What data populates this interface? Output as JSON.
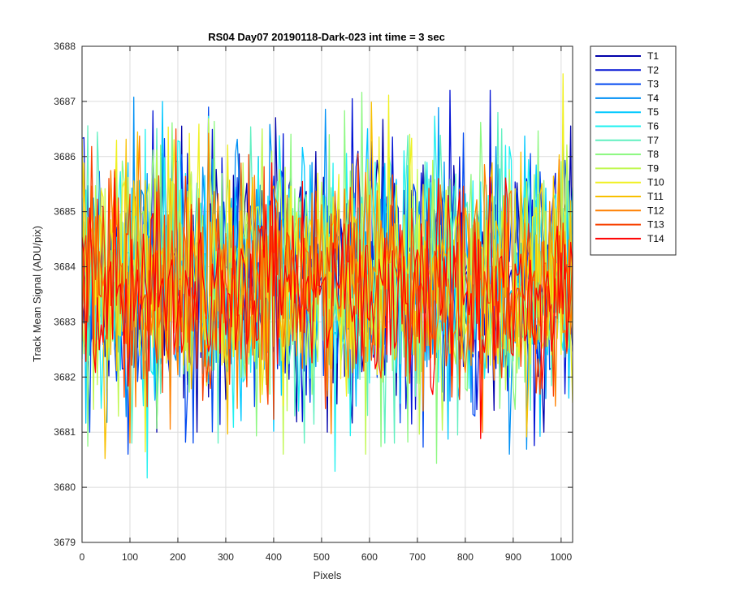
{
  "chart_data": {
    "type": "line",
    "title": "RS04 Day07 20190118-Dark-023 int time = 3 sec",
    "xlabel": "Pixels",
    "ylabel": "Track Mean Signal (ADU/pix)",
    "xlim": [
      0,
      1024
    ],
    "ylim": [
      3679,
      3688
    ],
    "xticks": [
      0,
      100,
      200,
      300,
      400,
      500,
      600,
      700,
      800,
      900,
      1000
    ],
    "yticks": [
      3679,
      3680,
      3681,
      3682,
      3683,
      3684,
      3685,
      3686,
      3687,
      3688
    ],
    "grid": true,
    "legend_position": "outside-top-right",
    "x_step": 4,
    "series": [
      {
        "name": "T1",
        "color": "#0000aa",
        "mean": 3683.8,
        "spread": 1.25,
        "annotated_min": 3681.0,
        "annotated_max": 3687.3
      },
      {
        "name": "T2",
        "color": "#0011d4",
        "mean": 3683.8,
        "spread": 1.25,
        "annotated_min": 3680.3,
        "annotated_max": 3687.2
      },
      {
        "name": "T3",
        "color": "#0048f0",
        "mean": 3683.8,
        "spread": 1.2,
        "annotated_min": 3680.6,
        "annotated_max": 3687.2
      },
      {
        "name": "T4",
        "color": "#0090f5",
        "mean": 3683.8,
        "spread": 1.2,
        "annotated_min": 3680.6,
        "annotated_max": 3687.3
      },
      {
        "name": "T5",
        "color": "#00c8ff",
        "mean": 3683.8,
        "spread": 1.15,
        "annotated_min": 3680.6,
        "annotated_max": 3687.0
      },
      {
        "name": "T6",
        "color": "#20f0f0",
        "mean": 3683.8,
        "spread": 1.15,
        "annotated_min": 3680.1,
        "annotated_max": 3686.8
      },
      {
        "name": "T7",
        "color": "#60f0c0",
        "mean": 3683.8,
        "spread": 1.15,
        "annotated_min": 3680.8,
        "annotated_max": 3686.8
      },
      {
        "name": "T8",
        "color": "#8cf880",
        "mean": 3683.8,
        "spread": 1.15,
        "annotated_min": 3680.4,
        "annotated_max": 3687.3
      },
      {
        "name": "T9",
        "color": "#c0f850",
        "mean": 3683.8,
        "spread": 1.15,
        "annotated_min": 3680.6,
        "annotated_max": 3687.3
      },
      {
        "name": "T10",
        "color": "#f0f020",
        "mean": 3683.8,
        "spread": 1.15,
        "annotated_min": 3680.6,
        "annotated_max": 3687.5
      },
      {
        "name": "T11",
        "color": "#f8c000",
        "mean": 3683.8,
        "spread": 1.1,
        "annotated_min": 3680.4,
        "annotated_max": 3687.2
      },
      {
        "name": "T12",
        "color": "#ff8000",
        "mean": 3683.7,
        "spread": 1.1,
        "annotated_min": 3680.3,
        "annotated_max": 3686.8
      },
      {
        "name": "T13",
        "color": "#f84000",
        "mean": 3683.6,
        "spread": 1.0,
        "annotated_min": 3679.4,
        "annotated_max": 3686.5
      },
      {
        "name": "T14",
        "color": "#ff0000",
        "mean": 3683.6,
        "spread": 0.9,
        "annotated_min": 3680.8,
        "annotated_max": 3686.3
      }
    ]
  }
}
